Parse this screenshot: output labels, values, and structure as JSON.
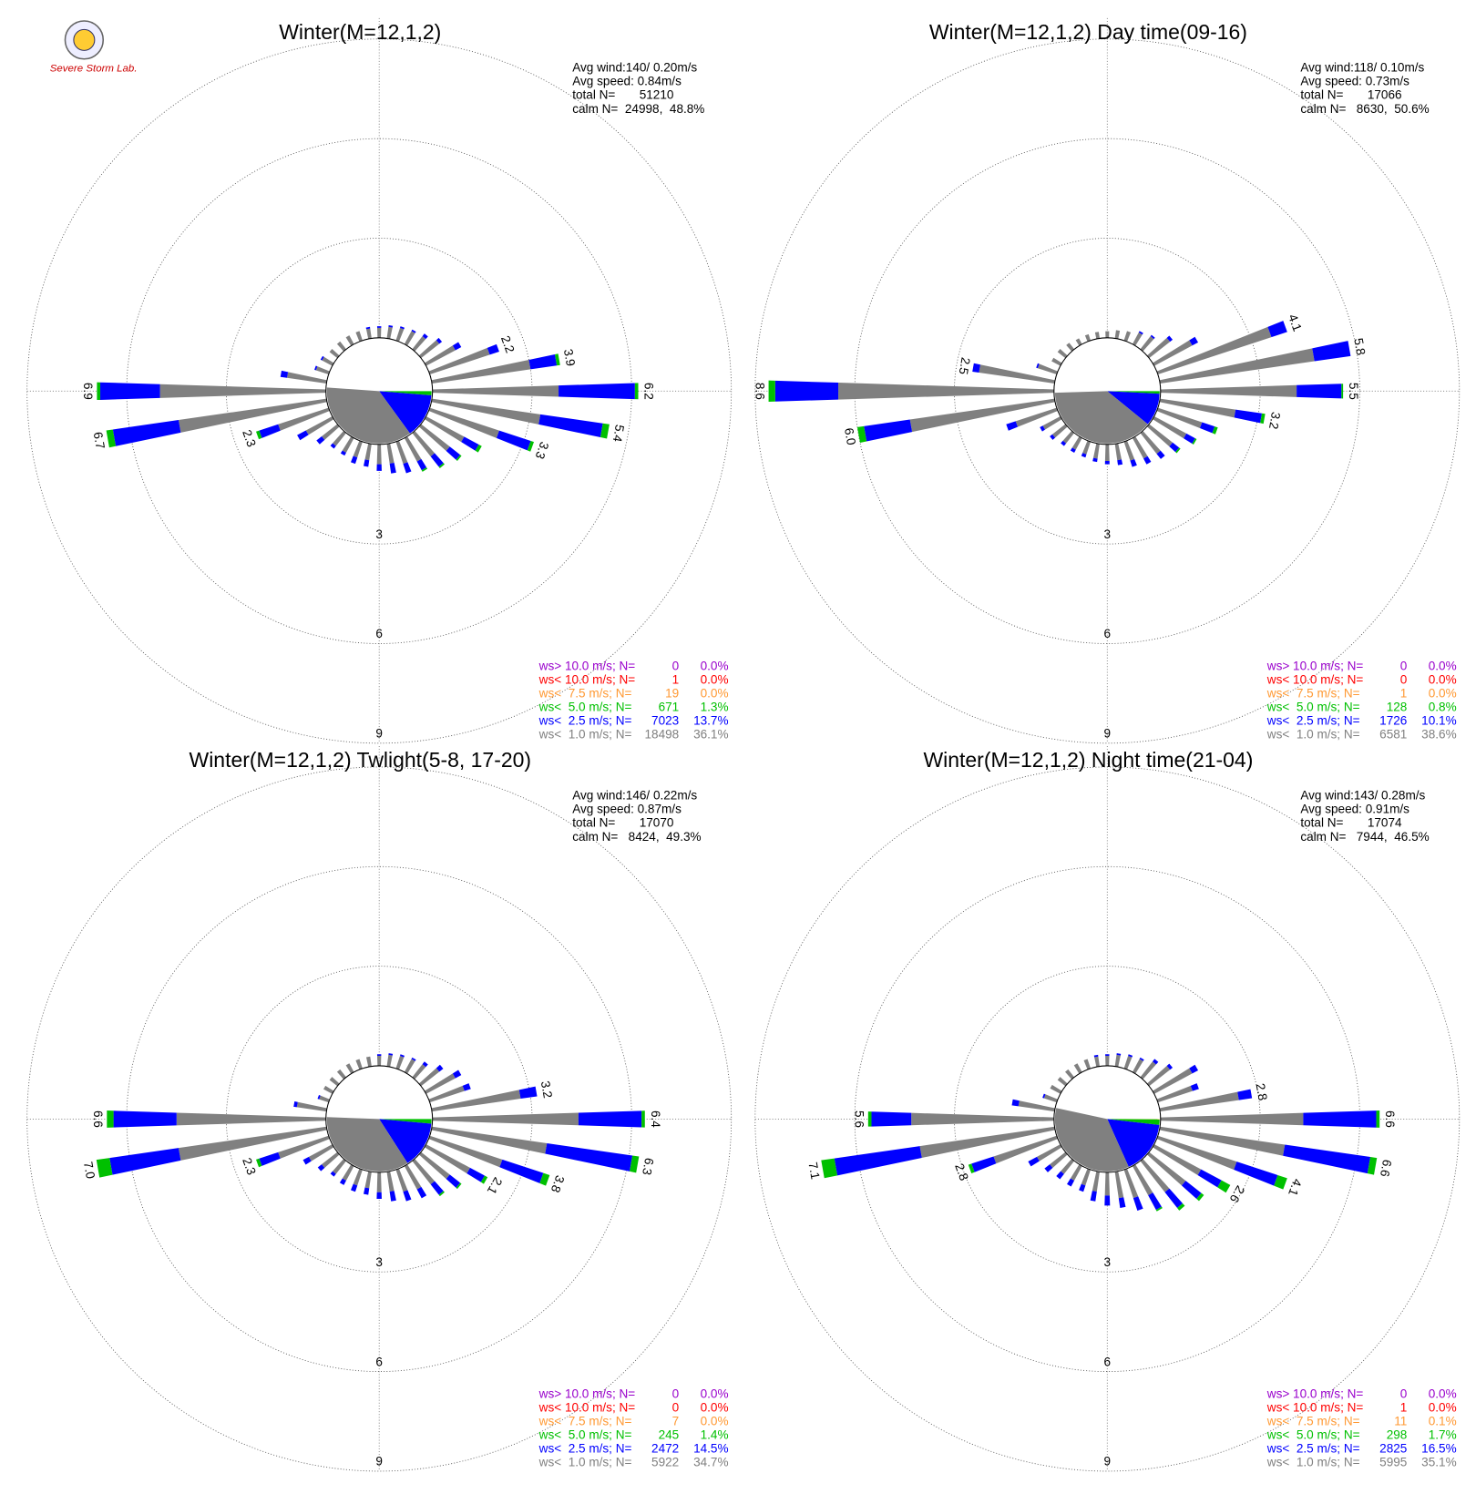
{
  "logo_text": "Severe Storm Lab.",
  "chart_data": [
    {
      "type": "windrose",
      "title": "Winter(M=12,1,2)",
      "stats": [
        "Avg wind:140/ 0.20m/s",
        "Avg speed: 0.84m/s",
        "total N=       51210",
        "calm N=  24998,  48.8%"
      ],
      "directions": [
        0,
        10,
        20,
        30,
        40,
        50,
        60,
        70,
        80,
        90,
        100,
        110,
        120,
        130,
        140,
        150,
        160,
        170,
        180,
        190,
        200,
        210,
        220,
        230,
        240,
        250,
        260,
        270,
        280,
        290,
        300,
        310,
        320,
        330,
        340,
        350
      ],
      "rlim": [
        0,
        9
      ],
      "rticks": [
        3,
        6,
        9
      ],
      "series": [
        {
          "color": "#808080",
          "values": [
            0.3,
            0.35,
            0.4,
            0.45,
            0.5,
            0.7,
            1.0,
            1.9,
            3.0,
            3.8,
            3.3,
            2.2,
            1.3,
            1.1,
            0.9,
            0.8,
            0.7,
            0.6,
            0.6,
            0.5,
            0.5,
            0.5,
            0.5,
            0.6,
            0.9,
            1.6,
            4.5,
            5.0,
            1.2,
            0.4,
            0.35,
            0.3,
            0.3,
            0.3,
            0.3,
            0.3
          ]
        },
        {
          "color": "#0000ff",
          "values": [
            0.05,
            0.05,
            0.05,
            0.05,
            0.1,
            0.1,
            0.2,
            0.3,
            0.8,
            2.3,
            1.9,
            1.0,
            0.5,
            0.4,
            0.4,
            0.3,
            0.3,
            0.3,
            0.2,
            0.2,
            0.2,
            0.1,
            0.1,
            0.2,
            0.3,
            0.6,
            2.0,
            1.8,
            0.2,
            0.05,
            0.05,
            0,
            0,
            0,
            0,
            0.05
          ]
        },
        {
          "color": "#00c000",
          "values": [
            0,
            0,
            0,
            0,
            0,
            0,
            0,
            0,
            0.1,
            0.1,
            0.2,
            0.1,
            0.1,
            0.05,
            0.05,
            0.05,
            0,
            0,
            0,
            0,
            0,
            0,
            0,
            0,
            0,
            0.1,
            0.2,
            0.1,
            0,
            0,
            0,
            0,
            0,
            0,
            0,
            0
          ]
        }
      ],
      "value_labels": [
        null,
        null,
        null,
        null,
        null,
        null,
        null,
        "2.2",
        "3.9",
        "6.2",
        "5.4",
        "3.3",
        null,
        null,
        null,
        null,
        null,
        null,
        null,
        null,
        null,
        null,
        null,
        null,
        null,
        "2.3",
        "6.7",
        "6.9",
        null,
        null,
        null,
        null,
        null,
        null,
        null,
        null
      ],
      "legend": [
        {
          "label": "ws> 10.0 m/s; N=",
          "n": 0,
          "pct": 0.0,
          "pct_label": "0.0%",
          "color": "#9900cc"
        },
        {
          "label": "ws< 10.0 m/s; N=",
          "n": 1,
          "pct": 0.0,
          "pct_label": "0.0%",
          "color": "#ff0000"
        },
        {
          "label": "ws<  7.5 m/s; N=",
          "n": 19,
          "pct": 0.0,
          "pct_label": "0.0%",
          "color": "#ff9933"
        },
        {
          "label": "ws<  5.0 m/s; N=",
          "n": 671,
          "pct": 1.3,
          "pct_label": "1.3%",
          "color": "#00c000"
        },
        {
          "label": "ws<  2.5 m/s; N=",
          "n": 7023,
          "pct": 13.7,
          "pct_label": "13.7%",
          "color": "#0000ff"
        },
        {
          "label": "ws<  1.0 m/s; N=",
          "n": 18498,
          "pct": 36.1,
          "pct_label": "36.1%",
          "color": "#808080"
        }
      ]
    },
    {
      "type": "windrose",
      "title": "Winter(M=12,1,2) Day time(09-16)",
      "stats": [
        "Avg wind:118/ 0.10m/s",
        "Avg speed: 0.73m/s",
        "total N=       17066",
        "calm N=   8630,  50.6%"
      ],
      "directions": [
        0,
        10,
        20,
        30,
        40,
        50,
        60,
        70,
        80,
        90,
        100,
        110,
        120,
        130,
        140,
        150,
        160,
        170,
        180,
        190,
        200,
        210,
        220,
        230,
        240,
        250,
        260,
        270,
        280,
        290,
        300,
        310,
        320,
        330,
        340,
        350
      ],
      "rlim": [
        0,
        9
      ],
      "rticks": [
        3,
        6,
        9
      ],
      "series": [
        {
          "color": "#808080",
          "values": [
            0.2,
            0.25,
            0.3,
            0.4,
            0.5,
            0.8,
            1.3,
            3.6,
            4.7,
            4.1,
            2.3,
            1.4,
            1.1,
            0.9,
            0.8,
            0.7,
            0.6,
            0.5,
            0.5,
            0.45,
            0.4,
            0.4,
            0.4,
            0.5,
            0.6,
            1.3,
            4.4,
            6.5,
            2.3,
            0.6,
            0.3,
            0.3,
            0.25,
            0.2,
            0.2,
            0.2
          ]
        },
        {
          "color": "#0000ff",
          "values": [
            0,
            0,
            0,
            0.05,
            0.05,
            0.1,
            0.2,
            0.5,
            1.1,
            1.35,
            0.8,
            0.4,
            0.3,
            0.25,
            0.2,
            0.2,
            0.2,
            0.15,
            0.1,
            0.1,
            0.1,
            0.1,
            0.1,
            0.1,
            0.1,
            0.3,
            1.4,
            1.9,
            0.2,
            0.05,
            0,
            0,
            0,
            0,
            0,
            0
          ]
        },
        {
          "color": "#00c000",
          "values": [
            0,
            0,
            0,
            0,
            0,
            0,
            0,
            0,
            0,
            0.05,
            0.1,
            0.1,
            0.05,
            0.05,
            0,
            0,
            0,
            0,
            0,
            0,
            0,
            0,
            0,
            0,
            0,
            0,
            0.2,
            0.2,
            0,
            0,
            0,
            0,
            0,
            0,
            0,
            0
          ]
        }
      ],
      "value_labels": [
        null,
        null,
        null,
        null,
        null,
        null,
        null,
        "4.1",
        "5.8",
        "5.5",
        "3.2",
        null,
        null,
        null,
        null,
        null,
        null,
        null,
        null,
        null,
        null,
        null,
        null,
        null,
        null,
        null,
        "6.0",
        "8.6",
        "2.5",
        null,
        null,
        null,
        null,
        null,
        null,
        null
      ],
      "legend": [
        {
          "label": "ws> 10.0 m/s; N=",
          "n": 0,
          "pct": 0.0,
          "pct_label": "0.0%",
          "color": "#9900cc"
        },
        {
          "label": "ws< 10.0 m/s; N=",
          "n": 0,
          "pct": 0.0,
          "pct_label": "0.0%",
          "color": "#ff0000"
        },
        {
          "label": "ws<  7.5 m/s; N=",
          "n": 1,
          "pct": 0.0,
          "pct_label": "0.0%",
          "color": "#ff9933"
        },
        {
          "label": "ws<  5.0 m/s; N=",
          "n": 128,
          "pct": 0.8,
          "pct_label": "0.8%",
          "color": "#00c000"
        },
        {
          "label": "ws<  2.5 m/s; N=",
          "n": 1726,
          "pct": 10.1,
          "pct_label": "10.1%",
          "color": "#0000ff"
        },
        {
          "label": "ws<  1.0 m/s; N=",
          "n": 6581,
          "pct": 38.6,
          "pct_label": "38.6%",
          "color": "#808080"
        }
      ]
    },
    {
      "type": "windrose",
      "title": "Winter(M=12,1,2) Twlight(5-8, 17-20)",
      "stats": [
        "Avg wind:146/ 0.22m/s",
        "Avg speed: 0.87m/s",
        "total N=       17070",
        "calm N=   8424,  49.3%"
      ],
      "directions": [
        0,
        10,
        20,
        30,
        40,
        50,
        60,
        70,
        80,
        90,
        100,
        110,
        120,
        130,
        140,
        150,
        160,
        170,
        180,
        190,
        200,
        210,
        220,
        230,
        240,
        250,
        260,
        270,
        280,
        290,
        300,
        310,
        320,
        330,
        340,
        350
      ],
      "rlim": [
        0,
        9
      ],
      "rticks": [
        3,
        6,
        9
      ],
      "series": [
        {
          "color": "#808080",
          "values": [
            0.3,
            0.35,
            0.4,
            0.45,
            0.5,
            0.7,
            1.0,
            1.1,
            2.7,
            4.4,
            3.5,
            2.3,
            1.5,
            1.1,
            0.9,
            0.8,
            0.7,
            0.6,
            0.6,
            0.5,
            0.5,
            0.5,
            0.5,
            0.6,
            0.8,
            1.6,
            4.5,
            4.5,
            0.9,
            0.3,
            0.3,
            0.3,
            0.3,
            0.3,
            0.3,
            0.3
          ]
        },
        {
          "color": "#0000ff",
          "values": [
            0.05,
            0.05,
            0.05,
            0.05,
            0.1,
            0.15,
            0.2,
            0.2,
            0.5,
            1.9,
            2.6,
            1.3,
            0.5,
            0.4,
            0.4,
            0.3,
            0.3,
            0.3,
            0.2,
            0.2,
            0.2,
            0.15,
            0.1,
            0.15,
            0.2,
            0.6,
            2.1,
            1.9,
            0.1,
            0.05,
            0,
            0,
            0,
            0,
            0,
            0
          ]
        },
        {
          "color": "#00c000",
          "values": [
            0,
            0,
            0,
            0,
            0,
            0,
            0,
            0,
            0,
            0.1,
            0.2,
            0.2,
            0.1,
            0.05,
            0.05,
            0,
            0,
            0,
            0,
            0,
            0,
            0,
            0,
            0,
            0,
            0.1,
            0.4,
            0.2,
            0,
            0,
            0,
            0,
            0,
            0,
            0,
            0
          ]
        }
      ],
      "value_labels": [
        null,
        null,
        null,
        null,
        null,
        null,
        null,
        null,
        "3.2",
        "6.4",
        "6.3",
        "3.8",
        "2.1",
        null,
        null,
        null,
        null,
        null,
        null,
        null,
        null,
        null,
        null,
        null,
        null,
        "2.3",
        "7.0",
        "6.6",
        null,
        null,
        null,
        null,
        null,
        null,
        null,
        null
      ],
      "legend": [
        {
          "label": "ws> 10.0 m/s; N=",
          "n": 0,
          "pct": 0.0,
          "pct_label": "0.0%",
          "color": "#9900cc"
        },
        {
          "label": "ws< 10.0 m/s; N=",
          "n": 0,
          "pct": 0.0,
          "pct_label": "0.0%",
          "color": "#ff0000"
        },
        {
          "label": "ws<  7.5 m/s; N=",
          "n": 7,
          "pct": 0.0,
          "pct_label": "0.0%",
          "color": "#ff9933"
        },
        {
          "label": "ws<  5.0 m/s; N=",
          "n": 245,
          "pct": 1.4,
          "pct_label": "1.4%",
          "color": "#00c000"
        },
        {
          "label": "ws<  2.5 m/s; N=",
          "n": 2472,
          "pct": 14.5,
          "pct_label": "14.5%",
          "color": "#0000ff"
        },
        {
          "label": "ws<  1.0 m/s; N=",
          "n": 5922,
          "pct": 34.7,
          "pct_label": "34.7%",
          "color": "#808080"
        }
      ]
    },
    {
      "type": "windrose",
      "title": "Winter(M=12,1,2) Night time(21-04)",
      "stats": [
        "Avg wind:143/ 0.28m/s",
        "Avg speed: 0.91m/s",
        "total N=       17074",
        "calm N=   7944,  46.5%"
      ],
      "directions": [
        0,
        10,
        20,
        30,
        40,
        50,
        60,
        70,
        80,
        90,
        100,
        110,
        120,
        130,
        140,
        150,
        160,
        170,
        180,
        190,
        200,
        210,
        220,
        230,
        240,
        250,
        260,
        270,
        280,
        290,
        300,
        310,
        320,
        330,
        340,
        350
      ],
      "rlim": [
        0,
        9
      ],
      "rticks": [
        3,
        6,
        9
      ],
      "series": [
        {
          "color": "#808080",
          "values": [
            0.3,
            0.35,
            0.4,
            0.45,
            0.6,
            0.8,
            1.3,
            1.1,
            2.4,
            4.3,
            3.8,
            2.5,
            1.6,
            1.4,
            1.2,
            1.0,
            0.9,
            0.8,
            0.7,
            0.6,
            0.5,
            0.5,
            0.5,
            0.6,
            0.8,
            2.0,
            4.1,
            4.3,
            1.1,
            0.4,
            0.35,
            0.3,
            0.3,
            0.3,
            0.3,
            0.3
          ]
        },
        {
          "color": "#0000ff",
          "values": [
            0.05,
            0.05,
            0.05,
            0.05,
            0.1,
            0.1,
            0.2,
            0.2,
            0.4,
            2.2,
            2.6,
            1.3,
            0.7,
            0.6,
            0.6,
            0.5,
            0.4,
            0.3,
            0.3,
            0.3,
            0.2,
            0.2,
            0.2,
            0.2,
            0.3,
            0.7,
            2.6,
            1.2,
            0.2,
            0.05,
            0,
            0,
            0,
            0,
            0,
            0.05
          ]
        },
        {
          "color": "#00c000",
          "values": [
            0,
            0,
            0,
            0,
            0,
            0,
            0,
            0,
            0,
            0.1,
            0.2,
            0.3,
            0.3,
            0.1,
            0.1,
            0.05,
            0,
            0,
            0,
            0,
            0,
            0,
            0,
            0,
            0,
            0.1,
            0.4,
            0.1,
            0,
            0,
            0,
            0,
            0,
            0,
            0,
            0
          ]
        }
      ],
      "value_labels": [
        null,
        null,
        null,
        null,
        null,
        null,
        null,
        null,
        "2.8",
        "6.6",
        "6.6",
        "4.1",
        "2.6",
        null,
        null,
        null,
        null,
        null,
        null,
        null,
        null,
        null,
        null,
        null,
        null,
        "2.8",
        "7.1",
        "5.6",
        null,
        null,
        null,
        null,
        null,
        null,
        null,
        null
      ],
      "legend": [
        {
          "label": "ws> 10.0 m/s; N=",
          "n": 0,
          "pct": 0.0,
          "pct_label": "0.0%",
          "color": "#9900cc"
        },
        {
          "label": "ws< 10.0 m/s; N=",
          "n": 1,
          "pct": 0.0,
          "pct_label": "0.0%",
          "color": "#ff0000"
        },
        {
          "label": "ws<  7.5 m/s; N=",
          "n": 11,
          "pct": 0.1,
          "pct_label": "0.1%",
          "color": "#ff9933"
        },
        {
          "label": "ws<  5.0 m/s; N=",
          "n": 298,
          "pct": 1.7,
          "pct_label": "1.7%",
          "color": "#00c000"
        },
        {
          "label": "ws<  2.5 m/s; N=",
          "n": 2825,
          "pct": 16.5,
          "pct_label": "16.5%",
          "color": "#0000ff"
        },
        {
          "label": "ws<  1.0 m/s; N=",
          "n": 5995,
          "pct": 35.1,
          "pct_label": "35.1%",
          "color": "#808080"
        }
      ]
    }
  ]
}
